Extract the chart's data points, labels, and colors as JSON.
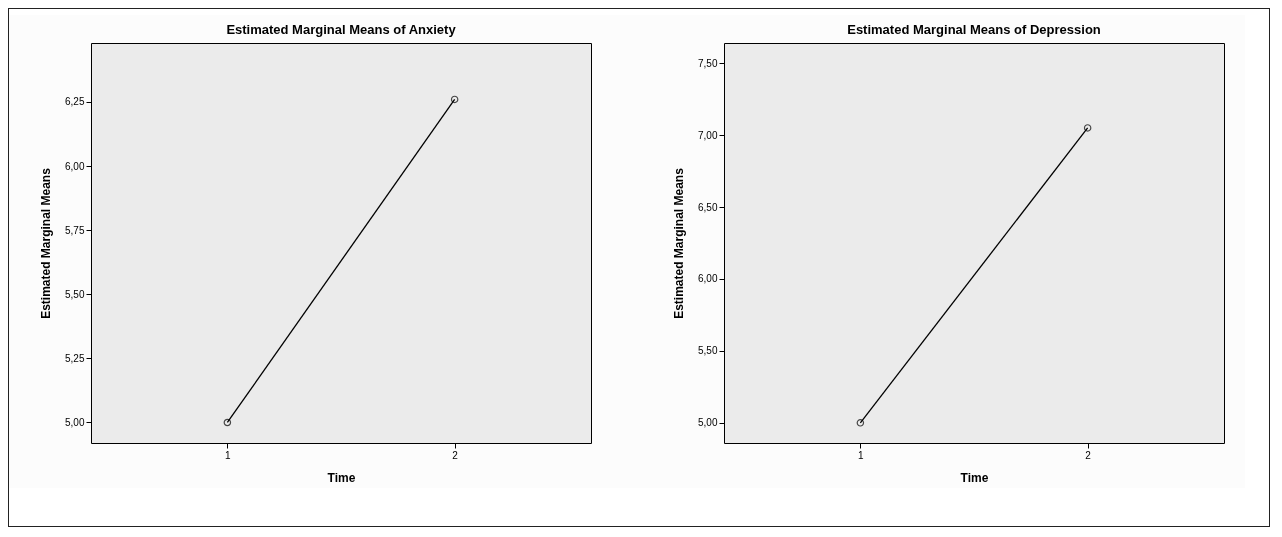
{
  "chart_data": [
    {
      "type": "line",
      "title": "Estimated Marginal Means of Anxiety",
      "xlabel": "Time",
      "ylabel": "Estimated Marginal Means",
      "categories": [
        "1",
        "2"
      ],
      "series": [
        {
          "color": "#000000",
          "values": [
            5.0,
            6.26
          ]
        }
      ],
      "ylim": [
        4.92,
        6.48
      ],
      "yticks": [
        {
          "value": 5,
          "label": "5,00"
        },
        {
          "value": 5.25,
          "label": "5,25"
        },
        {
          "value": 5.5,
          "label": "5,50"
        },
        {
          "value": 5.75,
          "label": "5,75"
        },
        {
          "value": 6,
          "label": "6,00"
        },
        {
          "value": 6.25,
          "label": "6,25"
        }
      ],
      "grid": false,
      "marker": "circle",
      "line_style": "solid"
    },
    {
      "type": "line",
      "title": "Estimated Marginal Means of Depression",
      "xlabel": "Time",
      "ylabel": "Estimated Marginal Means",
      "categories": [
        "1",
        "2"
      ],
      "series": [
        {
          "color": "#000000",
          "values": [
            5.0,
            7.05
          ]
        }
      ],
      "ylim": [
        4.86,
        7.64
      ],
      "yticks": [
        {
          "value": 5,
          "label": "5,00"
        },
        {
          "value": 5.5,
          "label": "5,50"
        },
        {
          "value": 6,
          "label": "6,00"
        },
        {
          "value": 6.5,
          "label": "6,50"
        },
        {
          "value": 7,
          "label": "7,00"
        },
        {
          "value": 7.5,
          "label": "7,50"
        }
      ],
      "grid": false,
      "marker": "circle",
      "line_style": "solid"
    }
  ]
}
